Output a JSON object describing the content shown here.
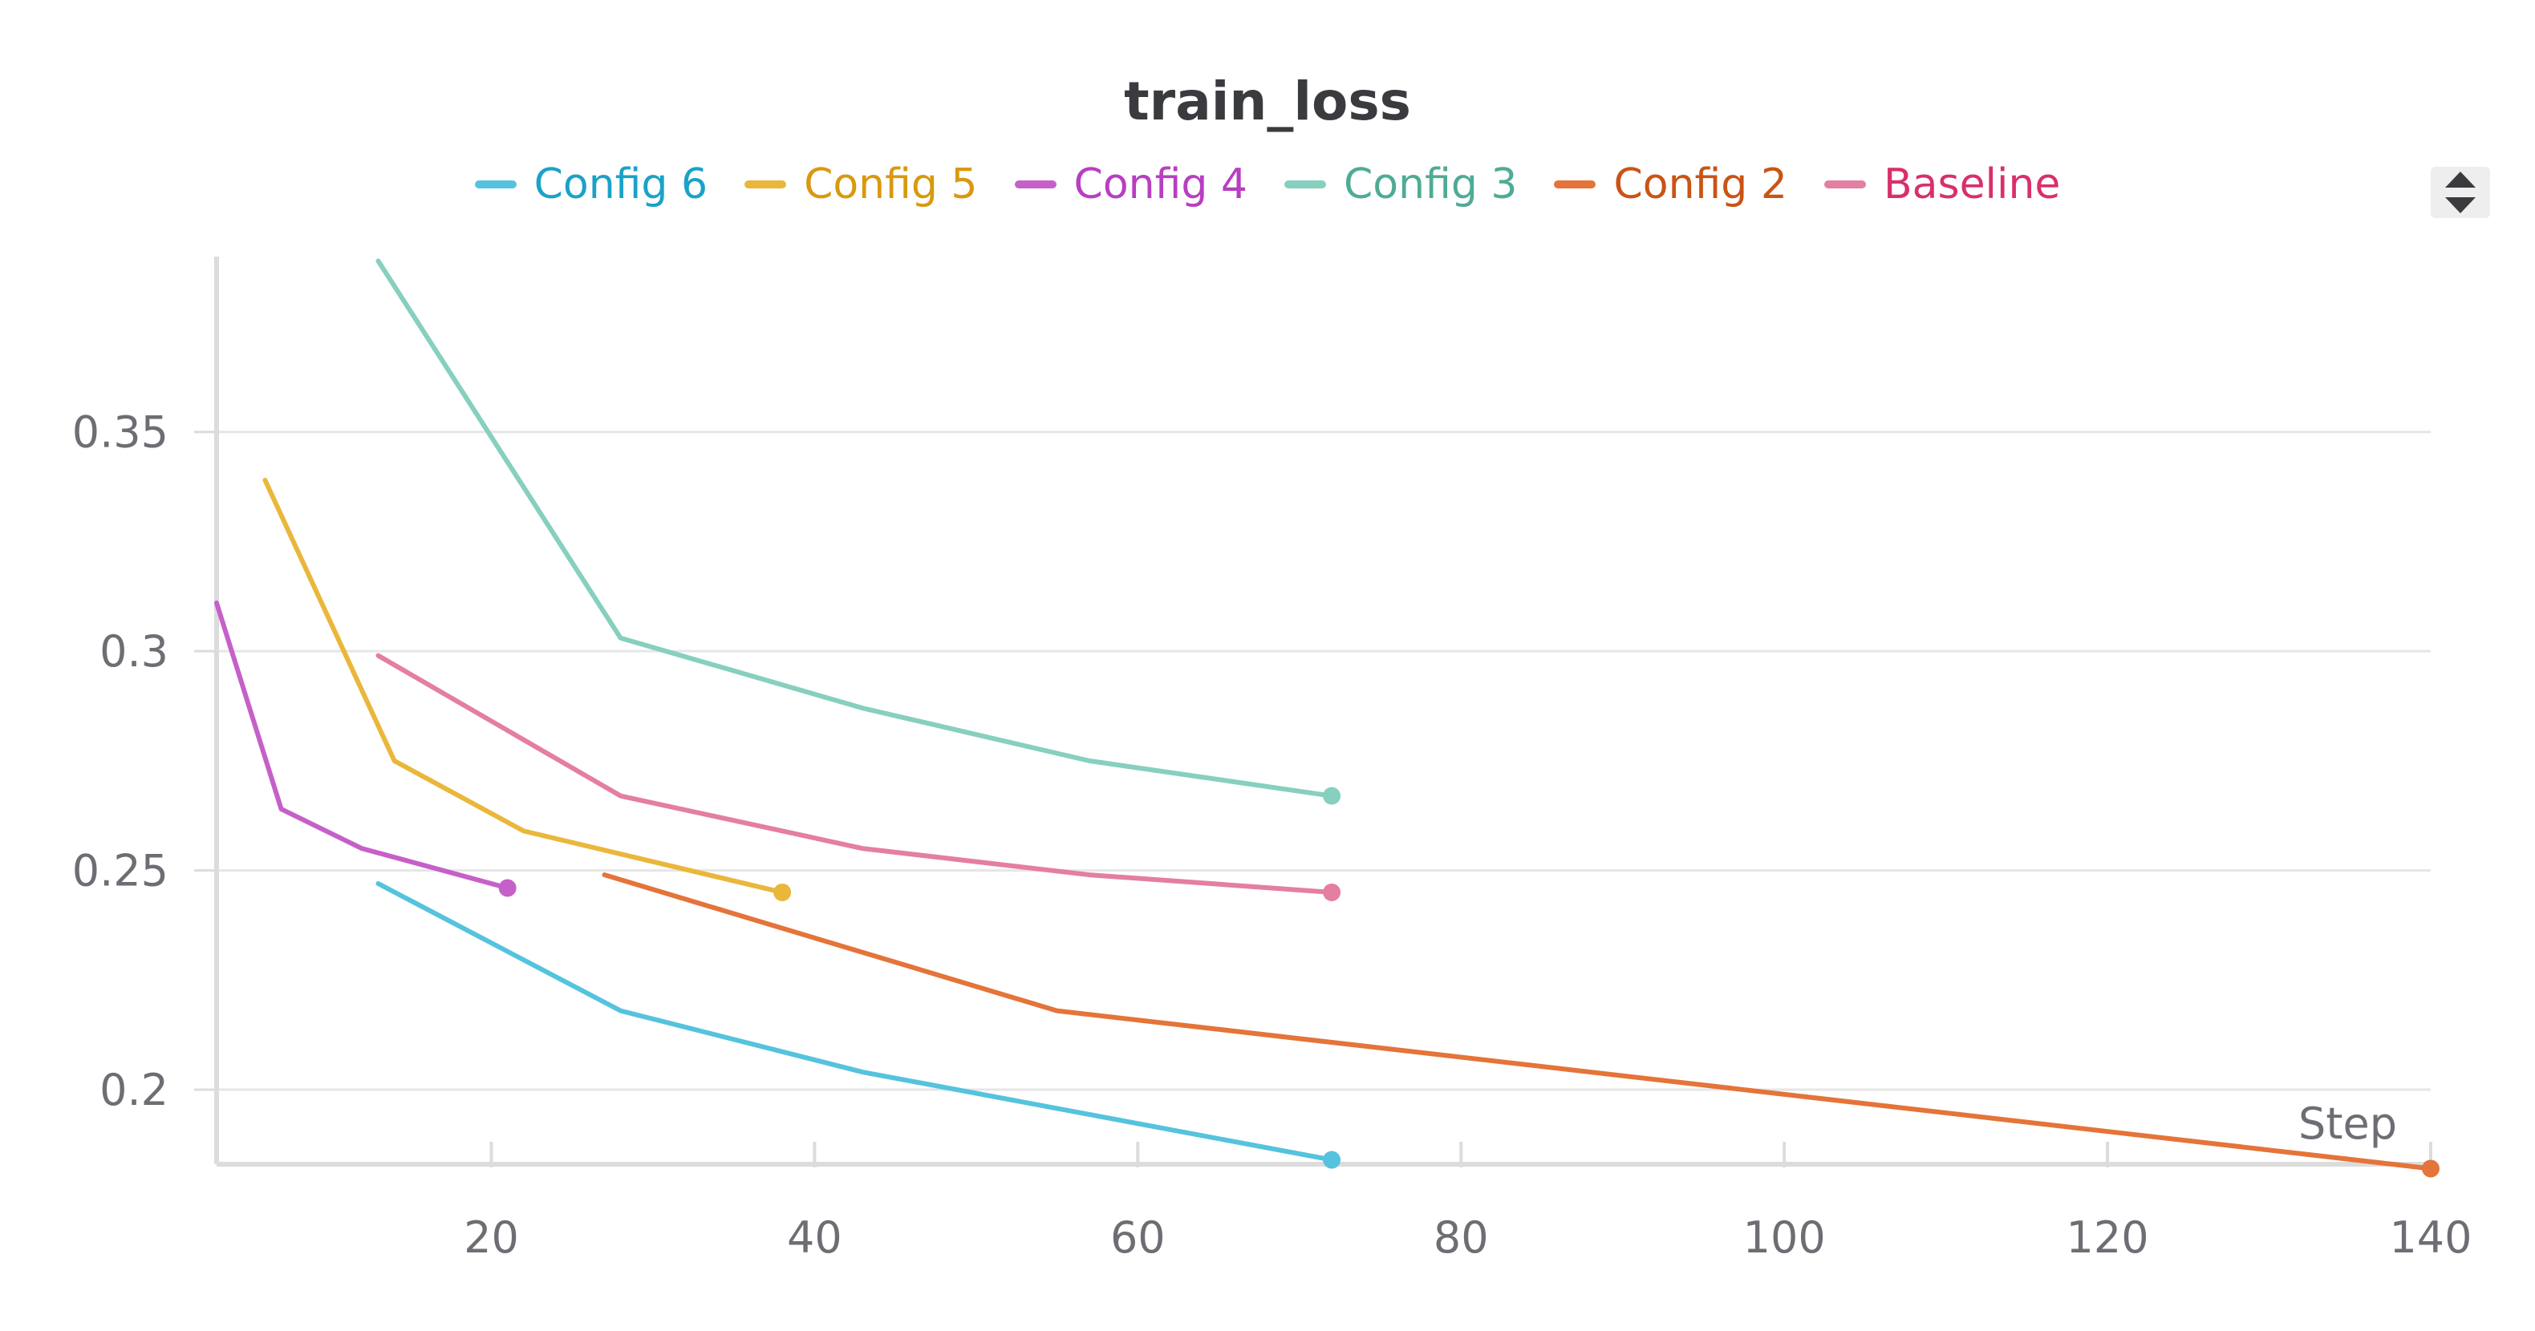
{
  "chart_data": {
    "type": "line",
    "title": "train_loss",
    "xlabel": "Step",
    "ylabel": "",
    "xlim": [
      3,
      140
    ],
    "ylim": [
      0.183,
      0.39
    ],
    "x_ticks": [
      20,
      40,
      60,
      80,
      100,
      120,
      140
    ],
    "y_ticks": [
      0.2,
      0.25,
      0.3,
      0.35
    ],
    "y_tick_labels": [
      "0.2",
      "0.25",
      "0.3",
      "0.35"
    ],
    "grid": true,
    "legend_position": "top-center",
    "series": [
      {
        "name": "Config 6",
        "color": "#55c3dd",
        "text_color": "#1aa2c8",
        "x": [
          13,
          28,
          43,
          72
        ],
        "y": [
          0.247,
          0.218,
          0.204,
          0.184
        ]
      },
      {
        "name": "Config 5",
        "color": "#eab73c",
        "text_color": "#d9990f",
        "x": [
          6,
          14,
          22,
          30,
          38
        ],
        "y": [
          0.339,
          0.275,
          0.259,
          0.252,
          0.245
        ]
      },
      {
        "name": "Config 4",
        "color": "#c660c9",
        "text_color": "#b83ec2",
        "x": [
          3,
          7,
          12,
          16,
          21
        ],
        "y": [
          0.311,
          0.264,
          0.255,
          0.251,
          0.246
        ]
      },
      {
        "name": "Config 3",
        "color": "#87cfbe",
        "text_color": "#4fab95",
        "x": [
          13,
          28,
          43,
          57,
          72
        ],
        "y": [
          0.389,
          0.303,
          0.287,
          0.275,
          0.267
        ]
      },
      {
        "name": "Config 2",
        "color": "#e47439",
        "text_color": "#c95415",
        "x": [
          27,
          55,
          140
        ],
        "y": [
          0.249,
          0.218,
          0.182
        ]
      },
      {
        "name": "Baseline",
        "color": "#e47ea3",
        "text_color": "#d92f6c",
        "x": [
          13,
          28,
          43,
          57,
          72
        ],
        "y": [
          0.299,
          0.267,
          0.255,
          0.249,
          0.245
        ]
      }
    ]
  }
}
